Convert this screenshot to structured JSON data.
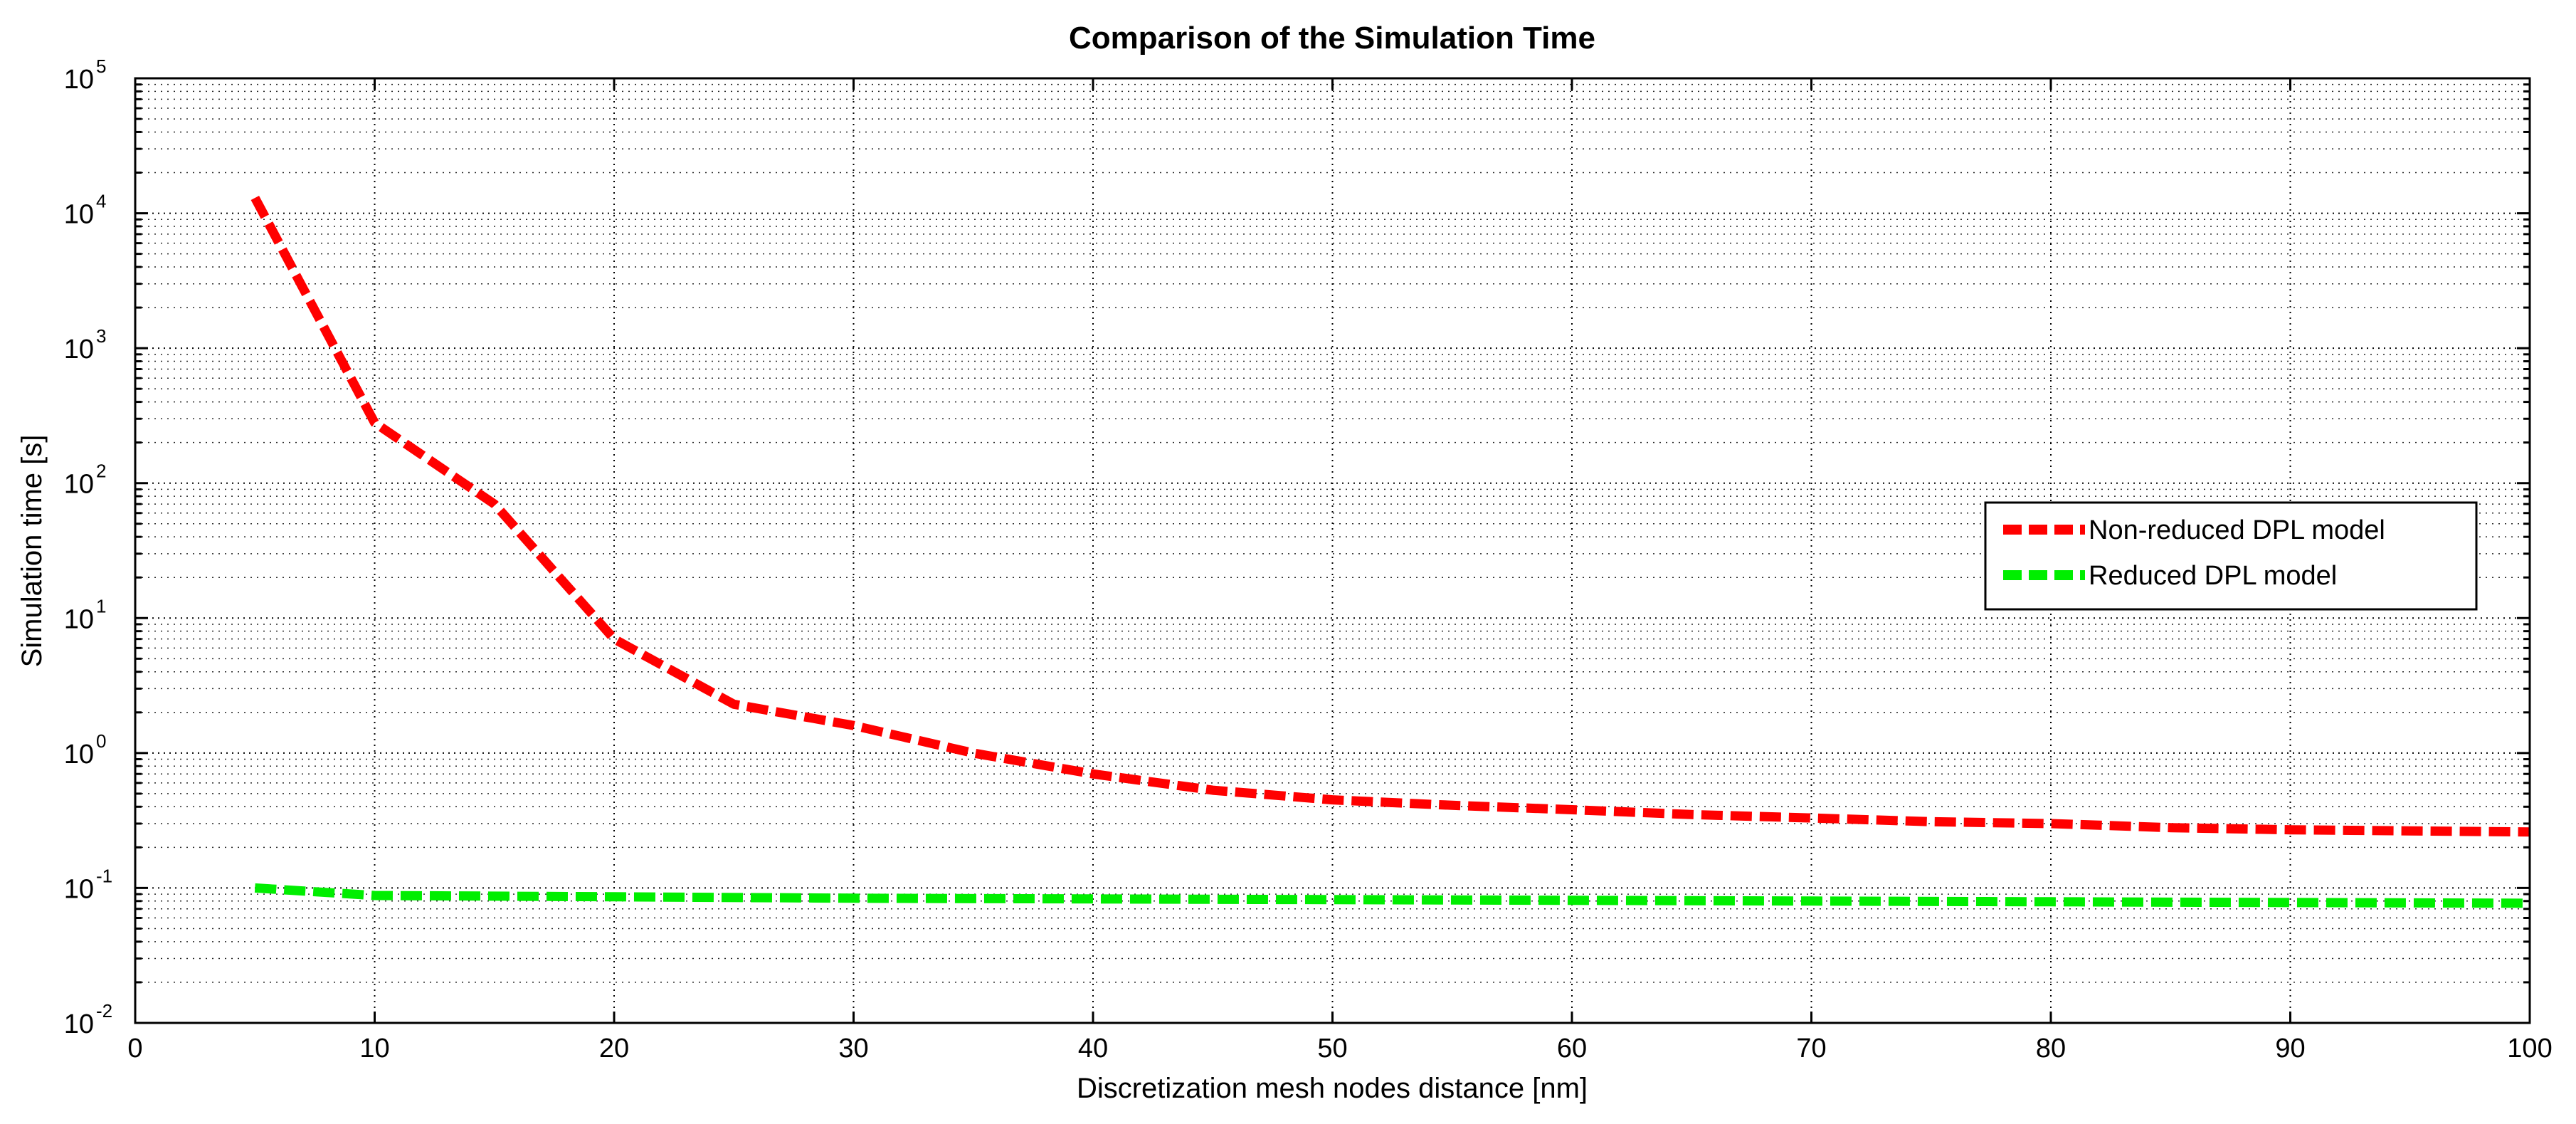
{
  "chart_data": {
    "type": "line",
    "title": "Comparison of the Simulation Time",
    "xlabel": "Discretization mesh nodes distance [nm]",
    "ylabel": "Simulation time [s]",
    "xlim": [
      0,
      100
    ],
    "ylim": [
      0.01,
      100000
    ],
    "yscale": "log",
    "grid": true,
    "legend_position": "right",
    "x_ticks": [
      0,
      10,
      20,
      30,
      40,
      50,
      60,
      70,
      80,
      90,
      100
    ],
    "y_ticks": [
      {
        "base": "10",
        "exp": "-2",
        "value": 0.01
      },
      {
        "base": "10",
        "exp": "-1",
        "value": 0.1
      },
      {
        "base": "10",
        "exp": "0",
        "value": 1
      },
      {
        "base": "10",
        "exp": "1",
        "value": 10
      },
      {
        "base": "10",
        "exp": "2",
        "value": 100
      },
      {
        "base": "10",
        "exp": "3",
        "value": 1000
      },
      {
        "base": "10",
        "exp": "4",
        "value": 10000
      },
      {
        "base": "10",
        "exp": "5",
        "value": 100000
      }
    ],
    "series": [
      {
        "name": "Non-reduced DPL model",
        "color": "#ff0000",
        "x": [
          5,
          10,
          15,
          20,
          25,
          30,
          35,
          40,
          45,
          50,
          55,
          60,
          65,
          70,
          75,
          80,
          85,
          90,
          95,
          100
        ],
        "y": [
          13000,
          280,
          70,
          7,
          2.3,
          1.6,
          1.0,
          0.7,
          0.53,
          0.45,
          0.41,
          0.38,
          0.35,
          0.33,
          0.31,
          0.3,
          0.28,
          0.27,
          0.265,
          0.26
        ]
      },
      {
        "name": "Reduced DPL model",
        "color": "#00ee00",
        "x": [
          5,
          10,
          20,
          30,
          40,
          50,
          60,
          70,
          80,
          90,
          100
        ],
        "y": [
          0.1,
          0.088,
          0.086,
          0.084,
          0.083,
          0.082,
          0.081,
          0.08,
          0.079,
          0.078,
          0.077
        ]
      }
    ]
  }
}
